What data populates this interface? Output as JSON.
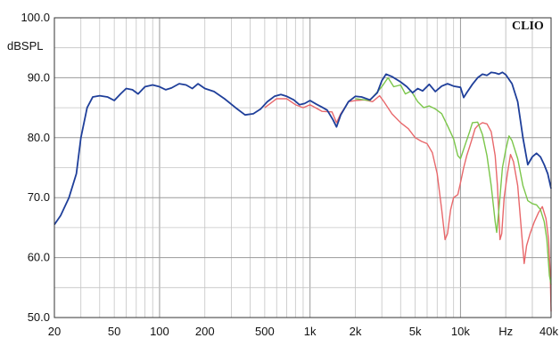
{
  "chart_data": {
    "type": "line",
    "title": "",
    "brand": "CLIO",
    "ylabel": "dBSPL",
    "xlabel": "",
    "x_unit": "Hz",
    "x_scale": "log",
    "xlim": [
      20,
      40000
    ],
    "ylim": [
      50,
      100
    ],
    "grid": true,
    "legend": "none",
    "y_ticks": [
      {
        "value": 50,
        "label": "50.0"
      },
      {
        "value": 60,
        "label": "60.0"
      },
      {
        "value": 70,
        "label": "70.0"
      },
      {
        "value": 80,
        "label": "80.0"
      },
      {
        "value": 90,
        "label": "90.0"
      },
      {
        "value": 100,
        "label": "100.0"
      }
    ],
    "x_ticks": [
      {
        "value": 20,
        "label": "20"
      },
      {
        "value": 50,
        "label": "50"
      },
      {
        "value": 100,
        "label": "100"
      },
      {
        "value": 200,
        "label": "200"
      },
      {
        "value": 500,
        "label": "500"
      },
      {
        "value": 1000,
        "label": "1k"
      },
      {
        "value": 2000,
        "label": "2k"
      },
      {
        "value": 5000,
        "label": "5k"
      },
      {
        "value": 10000,
        "label": "10k"
      },
      {
        "value": 20000,
        "label": "Hz"
      },
      {
        "value": 40000,
        "label": "40k"
      }
    ],
    "series": [
      {
        "color": "#1f3f9a",
        "points": [
          [
            20,
            65.5
          ],
          [
            22,
            67
          ],
          [
            25,
            70
          ],
          [
            28,
            74
          ],
          [
            30,
            80
          ],
          [
            33,
            85
          ],
          [
            36,
            86.8
          ],
          [
            40,
            87
          ],
          [
            45,
            86.8
          ],
          [
            50,
            86.2
          ],
          [
            55,
            87.3
          ],
          [
            60,
            88.2
          ],
          [
            66,
            88
          ],
          [
            72,
            87.3
          ],
          [
            80,
            88.5
          ],
          [
            90,
            88.8
          ],
          [
            100,
            88.5
          ],
          [
            110,
            88
          ],
          [
            120,
            88.3
          ],
          [
            135,
            89
          ],
          [
            150,
            88.8
          ],
          [
            165,
            88.2
          ],
          [
            180,
            89
          ],
          [
            200,
            88.2
          ],
          [
            230,
            87.7
          ],
          [
            270,
            86.5
          ],
          [
            320,
            85
          ],
          [
            370,
            83.8
          ],
          [
            420,
            84
          ],
          [
            470,
            84.8
          ],
          [
            520,
            86
          ],
          [
            580,
            86.9
          ],
          [
            640,
            87.2
          ],
          [
            700,
            86.9
          ],
          [
            780,
            86.3
          ],
          [
            850,
            85.5
          ],
          [
            920,
            85.7
          ],
          [
            1000,
            86.2
          ],
          [
            1100,
            85.6
          ],
          [
            1200,
            85.1
          ],
          [
            1300,
            84.6
          ],
          [
            1420,
            83
          ],
          [
            1500,
            81.8
          ],
          [
            1600,
            83.8
          ],
          [
            1800,
            86
          ],
          [
            2000,
            86.9
          ],
          [
            2200,
            86.8
          ],
          [
            2500,
            86.3
          ],
          [
            2800,
            87.5
          ],
          [
            3000,
            89.5
          ],
          [
            3200,
            90.6
          ],
          [
            3500,
            90.2
          ],
          [
            4000,
            89.3
          ],
          [
            4400,
            88.5
          ],
          [
            4800,
            87.5
          ],
          [
            5200,
            88.2
          ],
          [
            5600,
            87.8
          ],
          [
            6200,
            88.9
          ],
          [
            6800,
            87.7
          ],
          [
            7500,
            88.6
          ],
          [
            8200,
            89
          ],
          [
            9000,
            88.6
          ],
          [
            10000,
            88.4
          ],
          [
            10500,
            86.7
          ],
          [
            11000,
            87.5
          ],
          [
            12000,
            88.9
          ],
          [
            13000,
            90
          ],
          [
            14000,
            90.6
          ],
          [
            15000,
            90.4
          ],
          [
            16000,
            90.9
          ],
          [
            17000,
            90.8
          ],
          [
            18000,
            90.6
          ],
          [
            19000,
            90.9
          ],
          [
            20000,
            90.5
          ],
          [
            22000,
            89
          ],
          [
            24000,
            86
          ],
          [
            26000,
            80
          ],
          [
            28000,
            75.5
          ],
          [
            30000,
            76.8
          ],
          [
            32000,
            77.4
          ],
          [
            34000,
            76.8
          ],
          [
            36000,
            75.5
          ],
          [
            38000,
            74
          ],
          [
            40000,
            71.5
          ]
        ]
      },
      {
        "color": "#7bc64a",
        "points": [
          [
            2000,
            86.5
          ],
          [
            2500,
            86.2
          ],
          [
            3000,
            88.5
          ],
          [
            3300,
            90
          ],
          [
            3600,
            88.5
          ],
          [
            4000,
            88.8
          ],
          [
            4300,
            87.3
          ],
          [
            4700,
            87.8
          ],
          [
            5200,
            86
          ],
          [
            5700,
            85
          ],
          [
            6200,
            85.3
          ],
          [
            6800,
            84.8
          ],
          [
            7500,
            84
          ],
          [
            8200,
            82
          ],
          [
            9000,
            79.8
          ],
          [
            9600,
            77
          ],
          [
            10000,
            76.5
          ],
          [
            10800,
            79
          ],
          [
            11500,
            81
          ],
          [
            12000,
            82.5
          ],
          [
            13000,
            82.6
          ],
          [
            14000,
            80.5
          ],
          [
            15000,
            77
          ],
          [
            16000,
            72
          ],
          [
            17000,
            66
          ],
          [
            17400,
            64.2
          ],
          [
            18000,
            68
          ],
          [
            19000,
            75
          ],
          [
            20000,
            78
          ],
          [
            21000,
            80.3
          ],
          [
            22000,
            79.5
          ],
          [
            24000,
            76.5
          ],
          [
            26000,
            72
          ],
          [
            28000,
            69.5
          ],
          [
            30000,
            69
          ],
          [
            32000,
            68.8
          ],
          [
            34000,
            68
          ],
          [
            36000,
            66
          ],
          [
            37500,
            63
          ],
          [
            39000,
            57
          ],
          [
            40000,
            55.5
          ]
        ]
      },
      {
        "color": "#e8686b",
        "points": [
          [
            500,
            85
          ],
          [
            600,
            86.5
          ],
          [
            700,
            86.5
          ],
          [
            800,
            85.5
          ],
          [
            900,
            85
          ],
          [
            1000,
            85.5
          ],
          [
            1200,
            84.4
          ],
          [
            1400,
            84.3
          ],
          [
            1500,
            82.5
          ],
          [
            1600,
            84
          ],
          [
            1700,
            85
          ],
          [
            1800,
            86
          ],
          [
            2000,
            86.2
          ],
          [
            2300,
            86.3
          ],
          [
            2600,
            86
          ],
          [
            2900,
            87
          ],
          [
            3100,
            86
          ],
          [
            3500,
            84
          ],
          [
            4000,
            82.5
          ],
          [
            4500,
            81.5
          ],
          [
            5000,
            80
          ],
          [
            5500,
            79.4
          ],
          [
            6000,
            79
          ],
          [
            6500,
            77.5
          ],
          [
            7000,
            74
          ],
          [
            7500,
            68
          ],
          [
            7900,
            63
          ],
          [
            8200,
            64
          ],
          [
            8600,
            68
          ],
          [
            9000,
            70
          ],
          [
            9600,
            70.5
          ],
          [
            10000,
            72.5
          ],
          [
            10500,
            75
          ],
          [
            11000,
            77
          ],
          [
            11500,
            78.5
          ],
          [
            12000,
            80
          ],
          [
            12500,
            81.5
          ],
          [
            13000,
            82
          ],
          [
            14000,
            82.5
          ],
          [
            15000,
            82.3
          ],
          [
            16000,
            81
          ],
          [
            17000,
            77
          ],
          [
            17600,
            72
          ],
          [
            18300,
            63
          ],
          [
            18800,
            64
          ],
          [
            19500,
            70
          ],
          [
            20500,
            74
          ],
          [
            21500,
            77.2
          ],
          [
            22500,
            76
          ],
          [
            24000,
            72
          ],
          [
            25500,
            64
          ],
          [
            26500,
            59
          ],
          [
            27500,
            62
          ],
          [
            29000,
            64
          ],
          [
            31000,
            66
          ],
          [
            33000,
            67.5
          ],
          [
            35000,
            68.5
          ],
          [
            37000,
            66.5
          ],
          [
            38500,
            63
          ],
          [
            39500,
            57
          ],
          [
            40000,
            51
          ]
        ]
      }
    ]
  }
}
